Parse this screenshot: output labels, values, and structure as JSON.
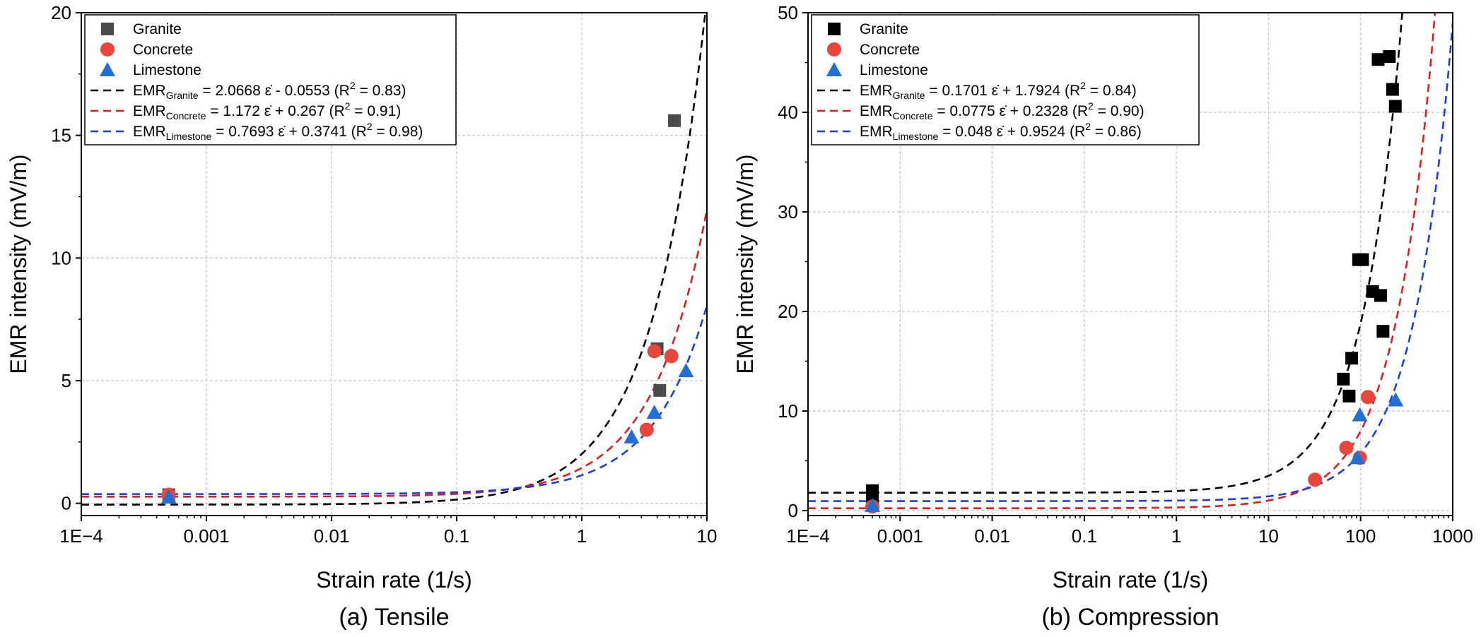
{
  "chart_data": [
    {
      "type": "scatter",
      "caption": "(a) Tensile",
      "xlabel": "Strain rate (1/s)",
      "ylabel": "EMR intensity (mV/m)",
      "xscale": "log",
      "xlim": [
        0.0001,
        10
      ],
      "ylim": [
        -0.5,
        20
      ],
      "xticks": [
        0.0001,
        0.001,
        0.01,
        0.1,
        1,
        10
      ],
      "xticklabels": [
        "1E−4",
        "0.001",
        "0.01",
        "0.1",
        "1",
        "10"
      ],
      "yticks": [
        0,
        5,
        10,
        15,
        20
      ],
      "yticklabels": [
        "0",
        "5",
        "10",
        "15",
        "20"
      ],
      "grid": true,
      "legend_position": "top-left",
      "series": [
        {
          "name": "Granite",
          "marker": "square",
          "color": "#4a4a4a",
          "x": [
            0.0005,
            4.0,
            4.2,
            5.5
          ],
          "y": [
            0.35,
            6.3,
            4.6,
            15.6
          ]
        },
        {
          "name": "Concrete",
          "marker": "circle",
          "color": "#e8453c",
          "x": [
            0.0005,
            3.3,
            3.8,
            5.2
          ],
          "y": [
            0.35,
            3.0,
            6.2,
            6.0
          ]
        },
        {
          "name": "Limestone",
          "marker": "triangle",
          "color": "#1f6fd6",
          "x": [
            0.0005,
            2.5,
            3.8,
            6.8
          ],
          "y": [
            0.25,
            2.7,
            3.7,
            5.4
          ]
        }
      ],
      "fits": [
        {
          "label": "EMR",
          "sub": "Granite",
          "rest": " = 2.0668",
          "rest2": " - 0.0553 (R",
          "r2": " = 0.83)",
          "color": "#000000",
          "a": 2.0668,
          "b": -0.0553
        },
        {
          "label": "EMR",
          "sub": "Concrete",
          "rest": " = 1.172",
          "rest2": " + 0.267 (R",
          "r2": " = 0.91)",
          "color": "#e41a1c",
          "a": 1.172,
          "b": 0.267
        },
        {
          "label": "EMR",
          "sub": "Limestone",
          "rest": " = 0.7693",
          "rest2": " + 0.3741 (R",
          "r2": " = 0.98)",
          "color": "#1a3fe0",
          "a": 0.7693,
          "b": 0.3741
        }
      ]
    },
    {
      "type": "scatter",
      "caption": "(b) Compression",
      "xlabel": "Strain rate (1/s)",
      "ylabel": "EMR intensity (mV/m)",
      "xscale": "log",
      "xlim": [
        0.0001,
        1000
      ],
      "ylim": [
        -0.5,
        50
      ],
      "xticks": [
        0.0001,
        0.001,
        0.01,
        0.1,
        1,
        10,
        100,
        1000
      ],
      "xticklabels": [
        "1E−4",
        "0.001",
        "0.01",
        "0.1",
        "1",
        "10",
        "100",
        "1000"
      ],
      "yticks": [
        0,
        10,
        20,
        30,
        40,
        50
      ],
      "yticklabels": [
        "0",
        "10",
        "20",
        "30",
        "40",
        "50"
      ],
      "grid": true,
      "legend_position": "top-left",
      "series": [
        {
          "name": "Granite",
          "marker": "square",
          "color": "#000000",
          "x": [
            0.0005,
            0.0005,
            65,
            75,
            80,
            95,
            105,
            135,
            165,
            175,
            155,
            205,
            222,
            238
          ],
          "y": [
            2.0,
            0.9,
            13.2,
            11.5,
            15.3,
            25.2,
            25.2,
            22.0,
            21.6,
            18.0,
            45.3,
            45.6,
            42.3,
            40.6
          ]
        },
        {
          "name": "Concrete",
          "marker": "circle",
          "color": "#e8453c",
          "x": [
            0.0005,
            32,
            70,
            98,
            120
          ],
          "y": [
            0.4,
            3.1,
            6.3,
            5.3,
            11.4
          ]
        },
        {
          "name": "Limestone",
          "marker": "triangle",
          "color": "#1f6fd6",
          "x": [
            0.0005,
            92,
            98,
            240
          ],
          "y": [
            0.5,
            5.3,
            9.6,
            11.1
          ]
        }
      ],
      "fits": [
        {
          "label": "EMR",
          "sub": "Granite",
          "rest": " = 0.1701",
          "rest2": " + 1.7924 (R",
          "r2": " = 0.84)",
          "color": "#000000",
          "a": 0.1701,
          "b": 1.7924
        },
        {
          "label": "EMR",
          "sub": "Concrete",
          "rest": " = 0.0775",
          "rest2": " + 0.2328 (R",
          "r2": " = 0.90)",
          "color": "#e41a1c",
          "a": 0.0775,
          "b": 0.2328
        },
        {
          "label": "EMR",
          "sub": "Limestone",
          "rest": " = 0.048",
          "rest2": " + 0.9524 (R",
          "r2": " = 0.86)",
          "color": "#1a3fe0",
          "a": 0.048,
          "b": 0.9524
        }
      ]
    }
  ]
}
